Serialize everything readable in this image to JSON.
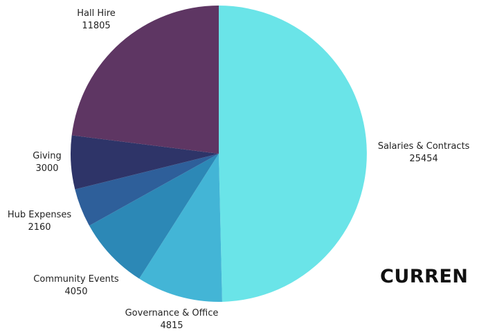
{
  "chart_data": {
    "type": "pie",
    "title": "",
    "slices": [
      {
        "label": "Salaries & Contracts",
        "value": 25454,
        "color": "#6ae4e8"
      },
      {
        "label": "Governance & Office",
        "value": 4815,
        "color": "#43b5d6"
      },
      {
        "label": "Community Events",
        "value": 4050,
        "color": "#2c88b6"
      },
      {
        "label": "Hub Expenses",
        "value": 2160,
        "color": "#2e5f9a"
      },
      {
        "label": "Giving",
        "value": 3000,
        "color": "#2e3468"
      },
      {
        "label": "Hall Hire",
        "value": 11805,
        "color": "#5e3663"
      }
    ],
    "start": "12 o'clock",
    "direction": "clockwise",
    "legend": "none",
    "labels": "outside, category name above value"
  },
  "heading_text": "CURREN"
}
